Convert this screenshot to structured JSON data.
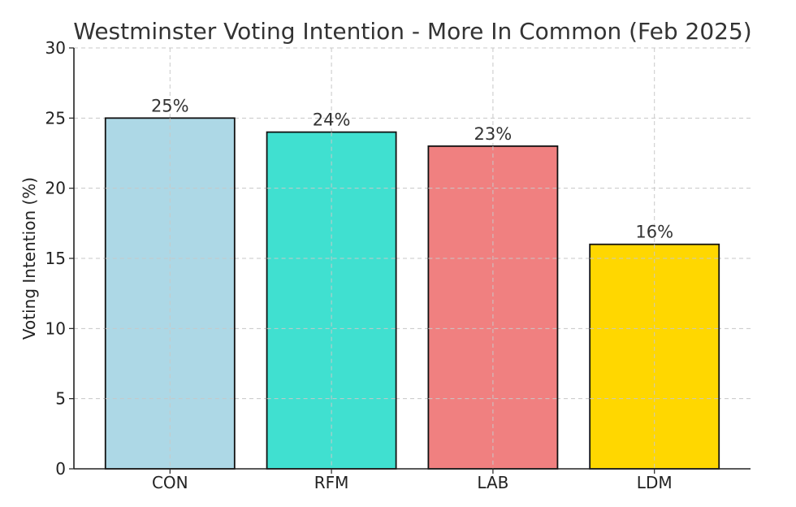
{
  "chart_data": {
    "type": "bar",
    "title": "Westminster Voting Intention - More In Common (Feb 2025)",
    "xlabel": "",
    "ylabel": "Voting Intention (%)",
    "categories": [
      "CON",
      "RFM",
      "LAB",
      "LDM"
    ],
    "values": [
      25,
      24,
      23,
      16
    ],
    "data_labels": [
      "25%",
      "24%",
      "23%",
      "16%"
    ],
    "colors": [
      "#add8e6",
      "#40e0d0",
      "#f08080",
      "#ffd700"
    ],
    "ylim": [
      0,
      30
    ],
    "yticks": [
      0,
      5,
      10,
      15,
      20,
      25,
      30
    ],
    "grid": true,
    "legend": "none"
  }
}
